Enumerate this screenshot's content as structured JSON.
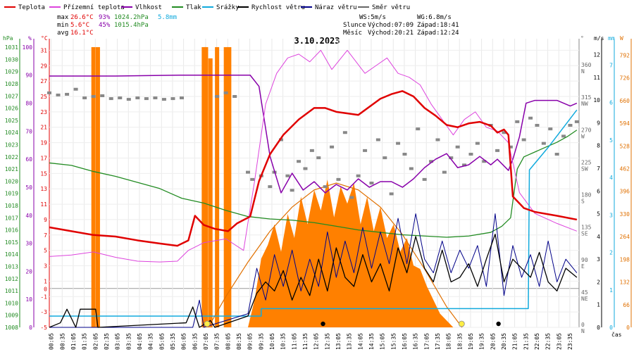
{
  "chart_data": {
    "type": "line",
    "title": "3.10.2023",
    "legend": [
      {
        "name": "Teplota",
        "color": "#e00000"
      },
      {
        "name": "Přízemní teplota",
        "color": "#dd44dd"
      },
      {
        "name": "Vlhkost",
        "color": "#8800aa"
      },
      {
        "name": "Tlak",
        "color": "#228b22"
      },
      {
        "name": "Srážky",
        "color": "#11aadd"
      },
      {
        "name": "Rychlost větru",
        "color": "#000000"
      },
      {
        "name": "Náraz větru",
        "color": "#000088"
      },
      {
        "name": "Směr větru",
        "color": "#666666"
      }
    ],
    "stats": {
      "max_label": "max",
      "max_t": "26.6°C",
      "max_h": "93%",
      "max_p": "1024.2hPa",
      "max_r": "5.8mm",
      "min_label": "min",
      "min_t": "5.6°C",
      "min_h": "45%",
      "min_p": "1015.4hPa",
      "avg_label": "avg",
      "avg_t": "16.1°C",
      "ws": "WS:5m/s",
      "wg": "WG:6.8m/s",
      "sun_label": "Slunce",
      "sun_rise": "Východ:07:09",
      "sun_set": "Západ:18:41",
      "moon_label": "Měsíc",
      "moon_rise": "Východ:20:21",
      "moon_set": "Západ:12:24"
    },
    "axes_units": {
      "hpa": "hPa",
      "pct": "%",
      "deg": "°C",
      "dir": "°",
      "ms": "m/s",
      "mm": "mm",
      "w": "W"
    },
    "xlabel": "čas",
    "x_ticks": [
      "00:05",
      "00:35",
      "01:05",
      "01:35",
      "02:05",
      "02:35",
      "03:05",
      "03:35",
      "04:05",
      "04:35",
      "05:05",
      "05:35",
      "06:05",
      "06:35",
      "07:05",
      "07:35",
      "08:05",
      "08:35",
      "09:05",
      "09:35",
      "10:05",
      "10:35",
      "11:05",
      "11:35",
      "12:05",
      "12:35",
      "13:05",
      "13:35",
      "14:05",
      "14:35",
      "15:05",
      "15:35",
      "16:05",
      "16:35",
      "17:05",
      "17:35",
      "18:05",
      "18:35",
      "19:05",
      "19:35",
      "20:05",
      "20:35",
      "21:05",
      "21:35",
      "22:05",
      "22:35",
      "23:05",
      "23:35"
    ],
    "pressure_ticks": [
      "1008",
      "1009",
      "1010",
      "1011",
      "1012",
      "1013",
      "1014",
      "1015",
      "1016",
      "1017",
      "1018",
      "1019",
      "1020",
      "1021",
      "1022",
      "1023",
      "1024",
      "1025",
      "1026",
      "1027",
      "1028",
      "1029",
      "1030",
      "1031"
    ],
    "humidity_ticks": [
      "0",
      "10",
      "20",
      "30",
      "40",
      "50",
      "60",
      "70",
      "80",
      "90",
      "100"
    ],
    "temp_ticks": [
      "-5",
      "-3",
      "-1",
      "0",
      "1",
      "3",
      "5",
      "7",
      "9",
      "11",
      "13",
      "15",
      "17",
      "19",
      "21",
      "23",
      "25",
      "27",
      "29",
      "31"
    ],
    "dir_ticks": [
      {
        "deg": "0",
        "lbl": "N"
      },
      {
        "deg": "45",
        "lbl": "NE"
      },
      {
        "deg": "90",
        "lbl": "E"
      },
      {
        "deg": "135",
        "lbl": "SE"
      },
      {
        "deg": "180",
        "lbl": "S"
      },
      {
        "deg": "225",
        "lbl": "SW"
      },
      {
        "deg": "270",
        "lbl": "W"
      },
      {
        "deg": "315",
        "lbl": "NW"
      },
      {
        "deg": "360",
        "lbl": "N"
      }
    ],
    "wind_ticks": [
      "0",
      "1",
      "2",
      "3",
      "4",
      "5",
      "6",
      "7",
      "8",
      "9",
      "10",
      "11",
      "12"
    ],
    "rain_ticks": [
      "0",
      "1",
      "2",
      "3",
      "4",
      "5",
      "6",
      "7"
    ],
    "solar_ticks": [
      "0",
      "66",
      "132",
      "198",
      "264",
      "330",
      "396",
      "462",
      "528",
      "594",
      "660",
      "726",
      "792"
    ],
    "temperature": [
      [
        0,
        8
      ],
      [
        1,
        7.5
      ],
      [
        2,
        7
      ],
      [
        3,
        6.8
      ],
      [
        4,
        6.3
      ],
      [
        5,
        5.9
      ],
      [
        5.8,
        5.6
      ],
      [
        6.3,
        6.3
      ],
      [
        6.6,
        9.5
      ],
      [
        7.0,
        8.3
      ],
      [
        7.5,
        7.8
      ],
      [
        8.1,
        7.5
      ],
      [
        8.5,
        8.5
      ],
      [
        9.1,
        9.4
      ],
      [
        9.5,
        14
      ],
      [
        10,
        17.5
      ],
      [
        10.6,
        20
      ],
      [
        11.3,
        22
      ],
      [
        12,
        23.5
      ],
      [
        12.5,
        23.5
      ],
      [
        13,
        23
      ],
      [
        14,
        22.6
      ],
      [
        15,
        24.7
      ],
      [
        15.5,
        25.3
      ],
      [
        16,
        25.7
      ],
      [
        16.5,
        25
      ],
      [
        17,
        23.5
      ],
      [
        17.5,
        22.5
      ],
      [
        18,
        21.3
      ],
      [
        18.5,
        21
      ],
      [
        19,
        21.5
      ],
      [
        19.5,
        21.7
      ],
      [
        20,
        21.2
      ],
      [
        20.3,
        20.3
      ],
      [
        20.6,
        20.7
      ],
      [
        20.8,
        20
      ],
      [
        21,
        12
      ],
      [
        21.5,
        10.5
      ],
      [
        22,
        10
      ],
      [
        23,
        9.5
      ],
      [
        23.9,
        9
      ]
    ],
    "ground_temperature": [
      [
        0,
        4.2
      ],
      [
        1,
        4.4
      ],
      [
        2,
        4.8
      ],
      [
        3,
        4.1
      ],
      [
        4,
        3.6
      ],
      [
        5,
        3.5
      ],
      [
        5.8,
        3.6
      ],
      [
        6.3,
        5
      ],
      [
        7,
        6
      ],
      [
        8,
        6.5
      ],
      [
        8.8,
        5
      ],
      [
        9.3,
        14
      ],
      [
        9.8,
        24
      ],
      [
        10.3,
        28
      ],
      [
        10.8,
        30
      ],
      [
        11.3,
        30.5
      ],
      [
        11.8,
        29.5
      ],
      [
        12.3,
        31
      ],
      [
        12.8,
        28.5
      ],
      [
        13.5,
        31
      ],
      [
        14.3,
        28
      ],
      [
        14.8,
        29
      ],
      [
        15.3,
        30
      ],
      [
        15.8,
        28
      ],
      [
        16.3,
        27.5
      ],
      [
        16.8,
        26.5
      ],
      [
        17.3,
        24
      ],
      [
        17.8,
        22
      ],
      [
        18.3,
        20
      ],
      [
        18.8,
        22
      ],
      [
        19.3,
        23
      ],
      [
        19.8,
        21
      ],
      [
        20.3,
        20.5
      ],
      [
        20.8,
        19
      ],
      [
        21.3,
        12.5
      ],
      [
        22,
        9.8
      ],
      [
        23,
        8.5
      ],
      [
        23.9,
        7.5
      ]
    ],
    "humidity": [
      [
        0,
        89.7
      ],
      [
        3,
        89.7
      ],
      [
        6,
        90
      ],
      [
        9.1,
        90
      ],
      [
        9.5,
        86
      ],
      [
        10,
        61
      ],
      [
        10.5,
        48
      ],
      [
        11,
        55
      ],
      [
        11.5,
        49
      ],
      [
        12,
        52
      ],
      [
        12.5,
        48
      ],
      [
        13,
        51
      ],
      [
        13.5,
        49
      ],
      [
        14,
        53
      ],
      [
        14.5,
        50
      ],
      [
        15,
        52
      ],
      [
        15.5,
        52
      ],
      [
        16,
        50
      ],
      [
        16.5,
        53
      ],
      [
        17,
        57
      ],
      [
        17.5,
        60
      ],
      [
        18,
        62
      ],
      [
        18.5,
        57
      ],
      [
        19,
        58
      ],
      [
        19.5,
        61
      ],
      [
        20,
        58
      ],
      [
        20.3,
        60
      ],
      [
        20.8,
        56
      ],
      [
        21,
        60
      ],
      [
        21.3,
        68
      ],
      [
        21.6,
        80
      ],
      [
        22,
        81
      ],
      [
        23,
        81
      ],
      [
        23.6,
        79
      ],
      [
        23.9,
        80
      ]
    ],
    "pressure": [
      [
        0,
        1021.5
      ],
      [
        1,
        1021.3
      ],
      [
        2,
        1020.8
      ],
      [
        3,
        1020.4
      ],
      [
        4,
        1019.9
      ],
      [
        5,
        1019.4
      ],
      [
        6,
        1018.6
      ],
      [
        7,
        1018.2
      ],
      [
        8,
        1017.6
      ],
      [
        9,
        1017.1
      ],
      [
        10,
        1016.9
      ],
      [
        11,
        1016.8
      ],
      [
        12,
        1016.6
      ],
      [
        13,
        1016.3
      ],
      [
        14,
        1016.0
      ],
      [
        15,
        1015.8
      ],
      [
        16,
        1015.6
      ],
      [
        17,
        1015.5
      ],
      [
        18,
        1015.4
      ],
      [
        19,
        1015.5
      ],
      [
        20,
        1015.8
      ],
      [
        20.5,
        1016.3
      ],
      [
        20.9,
        1017.0
      ],
      [
        21.2,
        1021.0
      ],
      [
        21.5,
        1022.0
      ],
      [
        22,
        1022.4
      ],
      [
        22.5,
        1022.8
      ],
      [
        23,
        1023.2
      ],
      [
        23.5,
        1023.7
      ],
      [
        23.9,
        1024.2
      ]
    ],
    "rain": [
      [
        0,
        0.3
      ],
      [
        9.6,
        0.3
      ],
      [
        9.6,
        0.5
      ],
      [
        21.7,
        0.5
      ],
      [
        21.75,
        4.2
      ],
      [
        22.6,
        4.8
      ],
      [
        23.9,
        5.8
      ]
    ],
    "wind_speed": [
      [
        0,
        0
      ],
      [
        0.5,
        0.2
      ],
      [
        0.8,
        0.8
      ],
      [
        1.2,
        0
      ],
      [
        1.4,
        0.8
      ],
      [
        2.1,
        0.8
      ],
      [
        2.2,
        0
      ],
      [
        6.2,
        0.2
      ],
      [
        6.5,
        0.9
      ],
      [
        6.8,
        0
      ],
      [
        7.3,
        0.3
      ],
      [
        7.5,
        0
      ],
      [
        9.0,
        0.5
      ],
      [
        9.4,
        1.5
      ],
      [
        9.8,
        2.0
      ],
      [
        10.2,
        1.6
      ],
      [
        10.6,
        2.5
      ],
      [
        11,
        1.2
      ],
      [
        11.4,
        2.2
      ],
      [
        11.8,
        1.4
      ],
      [
        12.2,
        3.0
      ],
      [
        12.6,
        1.6
      ],
      [
        13,
        3.5
      ],
      [
        13.4,
        2.2
      ],
      [
        13.8,
        1.8
      ],
      [
        14.2,
        3.2
      ],
      [
        14.6,
        2.0
      ],
      [
        15,
        2.8
      ],
      [
        15.4,
        1.6
      ],
      [
        15.8,
        3.5
      ],
      [
        16.2,
        2.4
      ],
      [
        16.6,
        4.0
      ],
      [
        17,
        2.6
      ],
      [
        17.4,
        2.0
      ],
      [
        17.8,
        3.4
      ],
      [
        18.2,
        2.0
      ],
      [
        18.6,
        2.2
      ],
      [
        19,
        2.8
      ],
      [
        19.4,
        1.8
      ],
      [
        19.8,
        3.0
      ],
      [
        20.2,
        4.1
      ],
      [
        20.6,
        2.0
      ],
      [
        21,
        3.0
      ],
      [
        21.4,
        2.6
      ],
      [
        21.8,
        2.2
      ],
      [
        22.2,
        3.3
      ],
      [
        22.6,
        2.0
      ],
      [
        23,
        1.6
      ],
      [
        23.4,
        2.6
      ],
      [
        23.9,
        2.2
      ]
    ],
    "wind_gust": [
      [
        0,
        0
      ],
      [
        6.5,
        0
      ],
      [
        6.8,
        1.2
      ],
      [
        7,
        0
      ],
      [
        9,
        0.6
      ],
      [
        9.4,
        2.6
      ],
      [
        9.8,
        1.2
      ],
      [
        10.2,
        3.2
      ],
      [
        10.6,
        1.8
      ],
      [
        11,
        3.4
      ],
      [
        11.4,
        1.6
      ],
      [
        11.8,
        3.0
      ],
      [
        12.2,
        1.8
      ],
      [
        12.6,
        4.2
      ],
      [
        13,
        2.2
      ],
      [
        13.4,
        3.8
      ],
      [
        13.8,
        2.4
      ],
      [
        14.2,
        4.4
      ],
      [
        14.6,
        2.6
      ],
      [
        15,
        4.2
      ],
      [
        15.4,
        2.8
      ],
      [
        15.8,
        4.8
      ],
      [
        16.2,
        2.8
      ],
      [
        16.6,
        5.0
      ],
      [
        17,
        3.0
      ],
      [
        17.4,
        2.4
      ],
      [
        17.8,
        3.8
      ],
      [
        18.2,
        2.4
      ],
      [
        18.6,
        3.4
      ],
      [
        19,
        2.6
      ],
      [
        19.4,
        3.6
      ],
      [
        19.8,
        1.8
      ],
      [
        20.2,
        5.0
      ],
      [
        20.6,
        1.4
      ],
      [
        21,
        3.6
      ],
      [
        21.4,
        2.2
      ],
      [
        21.8,
        3.2
      ],
      [
        22.2,
        1.8
      ],
      [
        22.6,
        3.8
      ],
      [
        23,
        2.0
      ],
      [
        23.4,
        3.0
      ],
      [
        23.9,
        2.4
      ]
    ],
    "wind_dir": [
      [
        0,
        325
      ],
      [
        0.4,
        322
      ],
      [
        0.8,
        323
      ],
      [
        1.2,
        330
      ],
      [
        1.6,
        318
      ],
      [
        2,
        320
      ],
      [
        2.4,
        321
      ],
      [
        2.8,
        317
      ],
      [
        3.2,
        318
      ],
      [
        3.6,
        316
      ],
      [
        4,
        318
      ],
      [
        4.4,
        317
      ],
      [
        4.8,
        318
      ],
      [
        5.2,
        316
      ],
      [
        5.6,
        317
      ],
      [
        6,
        318
      ],
      [
        7.6,
        320
      ],
      [
        8.0,
        325
      ],
      [
        8.4,
        320
      ],
      [
        9.0,
        215
      ],
      [
        9.2,
        205
      ],
      [
        9.6,
        210
      ],
      [
        10,
        195
      ],
      [
        10.2,
        215
      ],
      [
        10.5,
        260
      ],
      [
        10.8,
        210
      ],
      [
        11,
        190
      ],
      [
        11.3,
        230
      ],
      [
        11.6,
        220
      ],
      [
        11.9,
        245
      ],
      [
        12.2,
        235
      ],
      [
        12.5,
        195
      ],
      [
        12.8,
        250
      ],
      [
        13.1,
        205
      ],
      [
        13.4,
        270
      ],
      [
        13.7,
        180
      ],
      [
        14,
        210
      ],
      [
        14.3,
        245
      ],
      [
        14.6,
        200
      ],
      [
        14.9,
        260
      ],
      [
        15.2,
        235
      ],
      [
        15.5,
        185
      ],
      [
        15.8,
        255
      ],
      [
        16.1,
        240
      ],
      [
        16.4,
        220
      ],
      [
        16.7,
        275
      ],
      [
        17,
        205
      ],
      [
        17.3,
        230
      ],
      [
        17.6,
        260
      ],
      [
        17.9,
        215
      ],
      [
        18.2,
        235
      ],
      [
        18.5,
        250
      ],
      [
        18.8,
        225
      ],
      [
        19.1,
        240
      ],
      [
        19.4,
        255
      ],
      [
        19.7,
        230
      ],
      [
        20,
        280
      ],
      [
        20.3,
        245
      ],
      [
        20.6,
        270
      ],
      [
        20.9,
        250
      ],
      [
        21.2,
        285
      ],
      [
        21.5,
        260
      ],
      [
        21.8,
        290
      ],
      [
        22.1,
        280
      ],
      [
        22.4,
        255
      ],
      [
        22.7,
        275
      ],
      [
        23,
        240
      ],
      [
        23.3,
        265
      ],
      [
        23.6,
        280
      ],
      [
        23.9,
        285
      ]
    ],
    "solar": [
      [
        9,
        0
      ],
      [
        9.3,
        80
      ],
      [
        9.6,
        200
      ],
      [
        9.9,
        240
      ],
      [
        10.2,
        300
      ],
      [
        10.5,
        220
      ],
      [
        10.8,
        330
      ],
      [
        11.1,
        260
      ],
      [
        11.4,
        380
      ],
      [
        11.7,
        300
      ],
      [
        12,
        400
      ],
      [
        12.3,
        340
      ],
      [
        12.6,
        430
      ],
      [
        12.9,
        320
      ],
      [
        13.2,
        410
      ],
      [
        13.5,
        360
      ],
      [
        13.8,
        420
      ],
      [
        14.1,
        300
      ],
      [
        14.4,
        380
      ],
      [
        14.7,
        280
      ],
      [
        15,
        350
      ],
      [
        15.3,
        260
      ],
      [
        15.6,
        300
      ],
      [
        15.9,
        220
      ],
      [
        16.2,
        260
      ],
      [
        16.5,
        180
      ],
      [
        16.8,
        170
      ],
      [
        17.1,
        120
      ],
      [
        17.4,
        80
      ],
      [
        17.7,
        40
      ],
      [
        18,
        20
      ],
      [
        18.3,
        0
      ]
    ],
    "solar_clear": [
      [
        7.2,
        0
      ],
      [
        8,
        90
      ],
      [
        9,
        190
      ],
      [
        10,
        280
      ],
      [
        11,
        350
      ],
      [
        12,
        400
      ],
      [
        13,
        420
      ],
      [
        14,
        400
      ],
      [
        15,
        350
      ],
      [
        16,
        270
      ],
      [
        17,
        170
      ],
      [
        18,
        60
      ],
      [
        18.7,
        0
      ]
    ],
    "precip_bars": [
      [
        2.0,
        100
      ],
      [
        2.2,
        100
      ],
      [
        7.0,
        100
      ],
      [
        7.1,
        100
      ],
      [
        7.3,
        96
      ],
      [
        7.6,
        100
      ],
      [
        8.0,
        100
      ],
      [
        8.15,
        100
      ]
    ],
    "sun_markers": [
      {
        "t": 7.15,
        "kind": "sunrise"
      },
      {
        "t": 18.68,
        "kind": "sunset"
      },
      {
        "t": 20.35,
        "kind": "moonrise"
      },
      {
        "t": 12.4,
        "kind": "moonset"
      }
    ]
  }
}
